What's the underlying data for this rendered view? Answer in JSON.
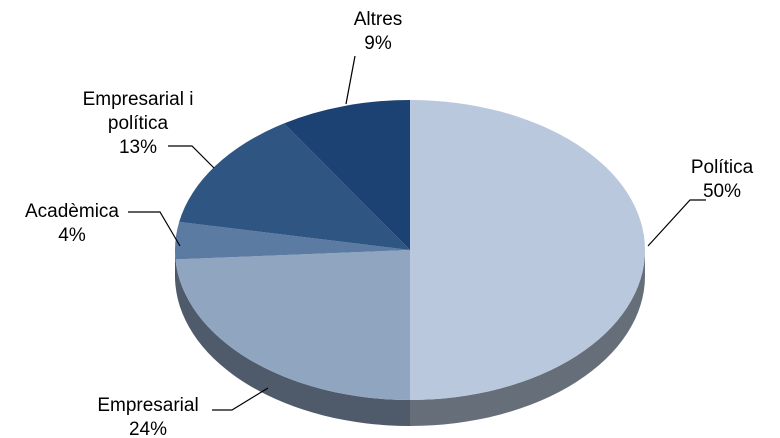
{
  "chart_data": {
    "type": "pie",
    "categories": [
      "Política",
      "Empresarial",
      "Acadèmica",
      "Empresarial i política",
      "Altres"
    ],
    "values": [
      50,
      24,
      4,
      13,
      9
    ],
    "value_labels": [
      "50%",
      "24%",
      "4%",
      "13%",
      "9%"
    ],
    "colors": [
      "#b9c8dc",
      "#8fa5c0",
      "#5b7ba2",
      "#2f5582",
      "#1c4173"
    ]
  }
}
